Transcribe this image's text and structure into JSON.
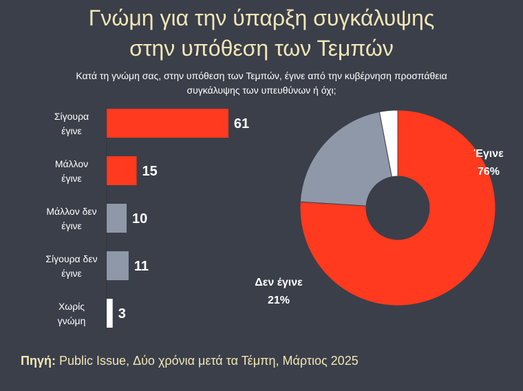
{
  "header": {
    "title_line1": "Γνώμη για την ύπαρξη συγκάλυψης",
    "title_line2": "στην υπόθεση των Τεμπών",
    "question_line1": "Κατά τη γνώμη σας, στην υπόθεση των Τεμπών, έγινε από την κυβέρνηση προσπάθεια",
    "question_line2": "συγκάλυψης των υπευθύνων ή όχι;"
  },
  "source": {
    "label": "Πηγή:",
    "text": "Public Issue, Δύο χρόνια μετά τα Τέμπη, Μάρτιος 2025"
  },
  "colors": {
    "background": "#3b3f4a",
    "red": "#ff3a1e",
    "grey": "#8f98a8",
    "white": "#ffffff",
    "title": "#f1e6b5"
  },
  "chart_data": [
    {
      "type": "bar",
      "orientation": "horizontal",
      "categories": [
        [
          "Σίγουρα",
          "έγινε"
        ],
        [
          "Μάλλον",
          "έγινε"
        ],
        [
          "Μάλλον δεν",
          "έγινε"
        ],
        [
          "Σίγουρα δεν",
          "έγινε"
        ],
        [
          "Χωρίς",
          "γνώμη"
        ]
      ],
      "values": [
        61,
        15,
        10,
        11,
        3
      ],
      "bar_colors": [
        "#ff3a1e",
        "#ff3a1e",
        "#8f98a8",
        "#8f98a8",
        "#ffffff"
      ],
      "grid": false
    },
    {
      "type": "pie",
      "donut": true,
      "slices": [
        {
          "label": "Έγινε",
          "value": 76,
          "value_label": "76%",
          "color": "#ff3a1e"
        },
        {
          "label": "Δεν έγινε",
          "value": 21,
          "value_label": "21%",
          "color": "#8f98a8"
        },
        {
          "label": "",
          "value": 3,
          "value_label": "",
          "color": "#ffffff"
        }
      ]
    }
  ]
}
